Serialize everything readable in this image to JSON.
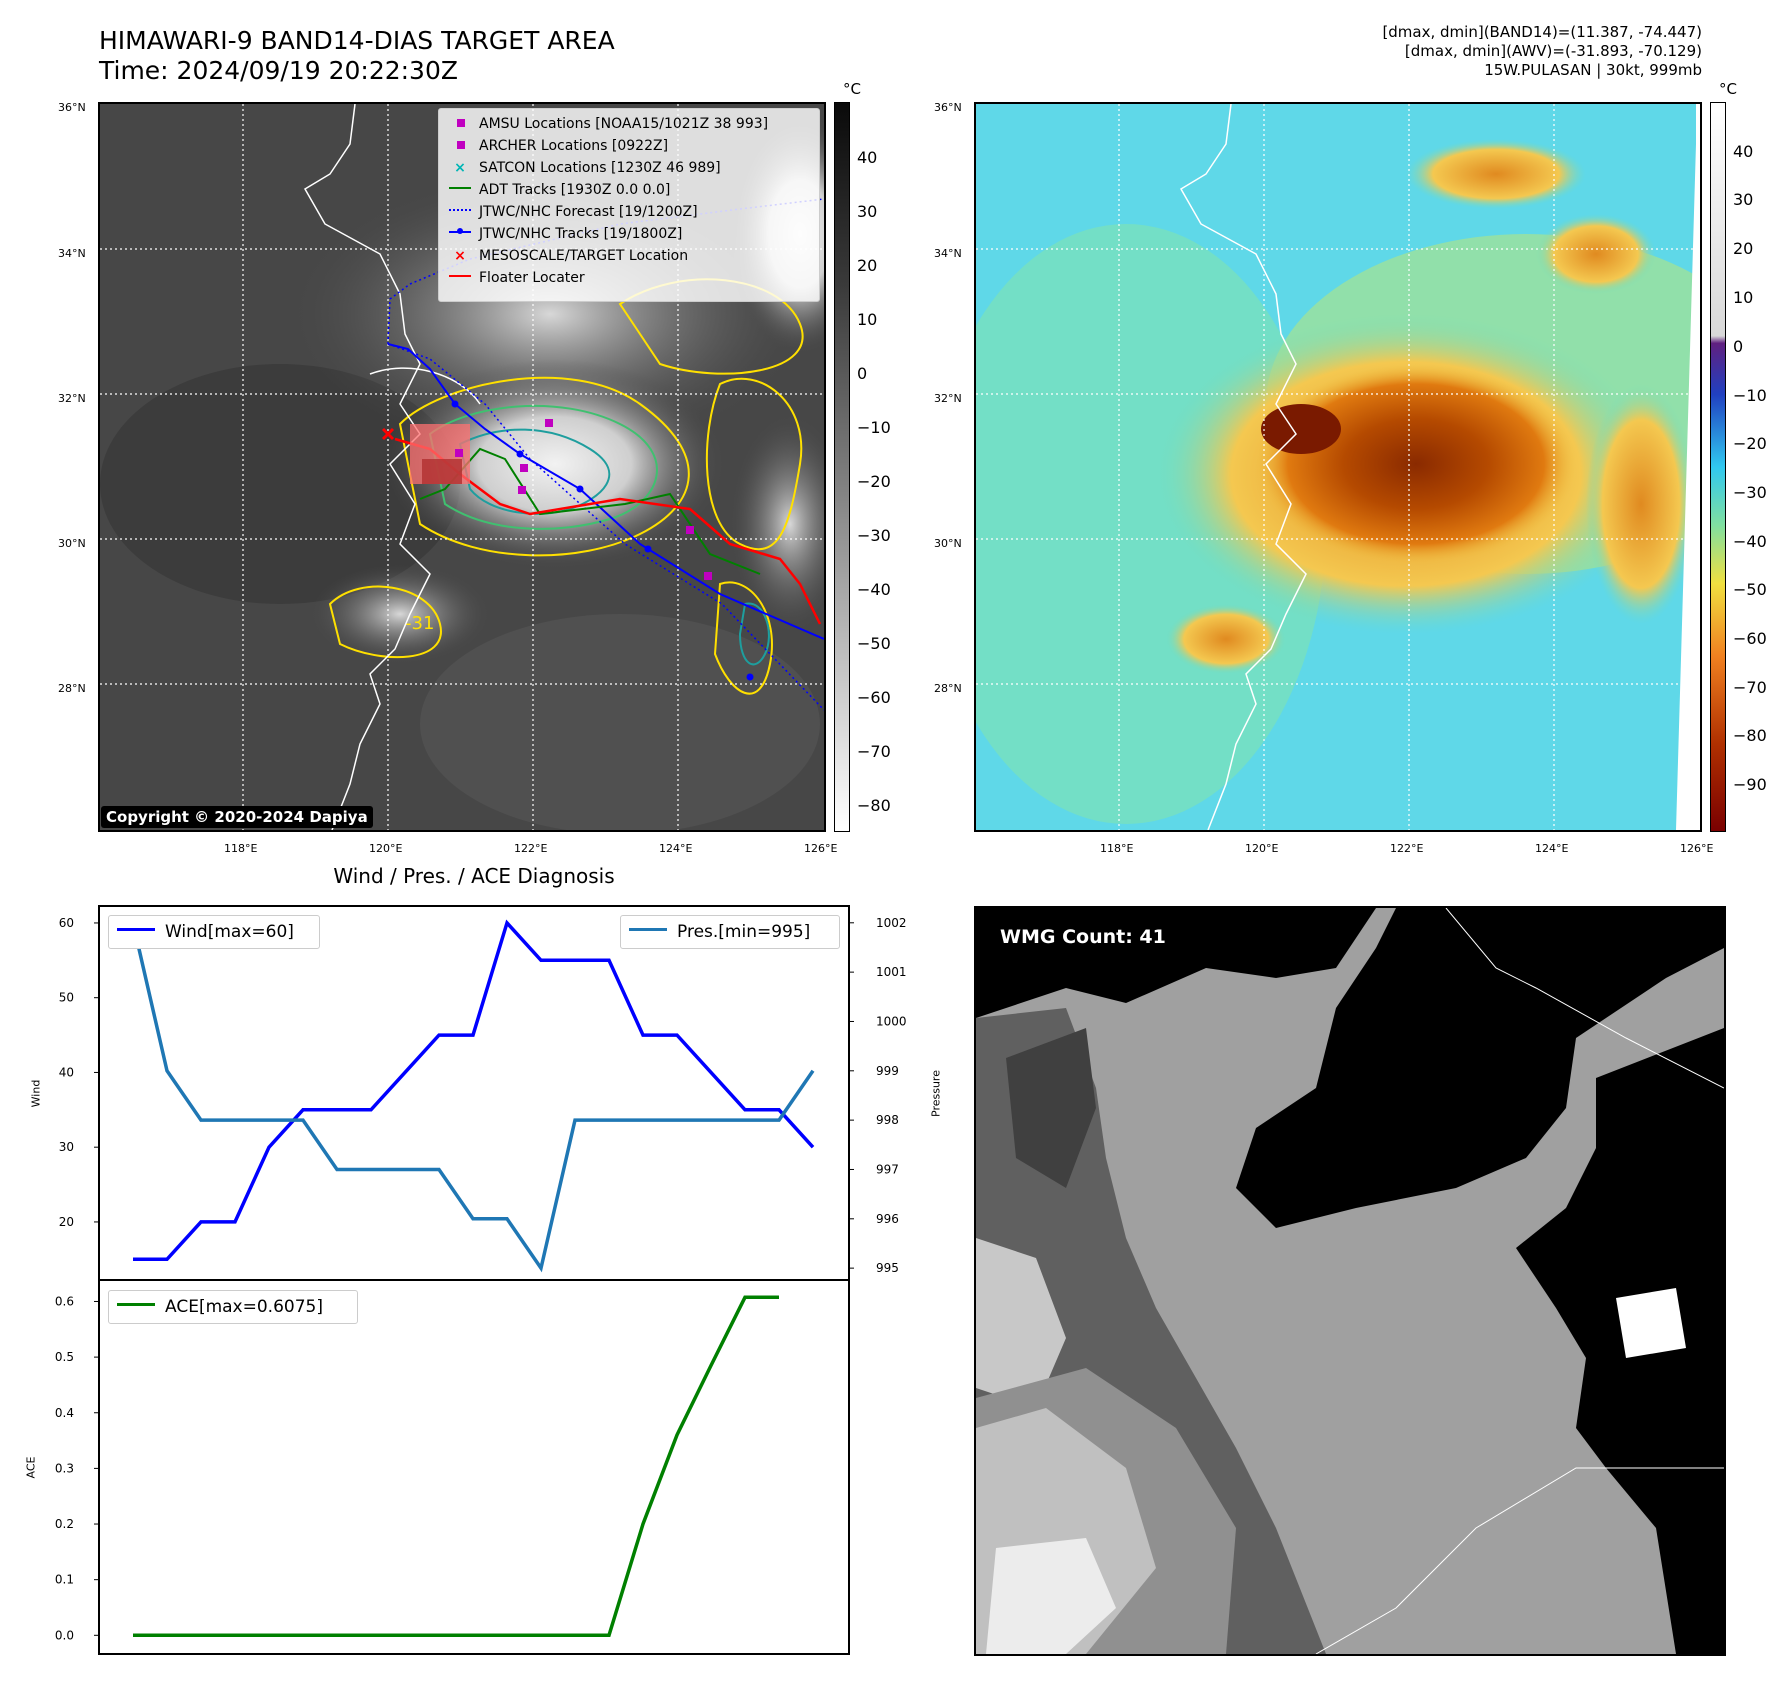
{
  "header": {
    "title_line1": "HIMAWARI-9 BAND14-DIAS TARGET AREA",
    "title_line2": "Time: 2024/09/19 20:22:30Z",
    "info_line1": "[dmax, dmin](BAND14)=(11.387, -74.447)",
    "info_line2": "[dmax, dmin](AWV)=(-31.893, -70.129)",
    "info_line3": "15W.PULASAN | 30kt, 999mb"
  },
  "map": {
    "lat_ticks": [
      "36°N",
      "34°N",
      "32°N",
      "30°N",
      "28°N"
    ],
    "lon_ticks": [
      "118°E",
      "120°E",
      "122°E",
      "124°E",
      "126°E"
    ],
    "contour_label": "-31"
  },
  "left_colorbar": {
    "unit": "°C",
    "ticks": [
      "40",
      "30",
      "20",
      "10",
      "0",
      "−10",
      "−20",
      "−30",
      "−40",
      "−50",
      "−60",
      "−70",
      "−80"
    ]
  },
  "right_colorbar": {
    "unit": "°C",
    "ticks": [
      "40",
      "30",
      "20",
      "10",
      "0",
      "−10",
      "−20",
      "−30",
      "−40",
      "−50",
      "−60",
      "−70",
      "−80",
      "−90"
    ]
  },
  "legend": {
    "items": [
      {
        "label": "AMSU Locations [NOAA15/1021Z 38 993]",
        "marker": "square",
        "color": "#c000c0"
      },
      {
        "label": "ARCHER Locations [0922Z]",
        "marker": "square",
        "color": "#c000c0"
      },
      {
        "label": "SATCON Locations [1230Z 46 989]",
        "marker": "x",
        "color": "#00b5b5"
      },
      {
        "label": "ADT Tracks [1930Z 0.0 0.0]",
        "marker": "line",
        "color": "#008000"
      },
      {
        "label": "JTWC/NHC Forecast [19/1200Z]",
        "marker": "dotted",
        "color": "#0000ff"
      },
      {
        "label": "JTWC/NHC Tracks [19/1800Z]",
        "marker": "line-dot",
        "color": "#0000ff"
      },
      {
        "label": "MESOSCALE/TARGET Location",
        "marker": "x",
        "color": "#ff0000"
      },
      {
        "label": "Floater Locater",
        "marker": "line",
        "color": "#ff0000"
      }
    ]
  },
  "copyright": "Copyright © 2020-2024 Dapiya",
  "wmg_label": "WMG Count: 41",
  "diagnosis": {
    "title": "Wind / Pres. / ACE Diagnosis",
    "wind_legend": "Wind[max=60]",
    "pres_legend": "Pres.[min=995]",
    "ace_legend": "ACE[max=0.6075]",
    "wind_axis_label": "Wind",
    "pres_axis_label": "Pressure",
    "ace_axis_label": "ACE",
    "wind_ticks": [
      "60",
      "50",
      "40",
      "30",
      "20"
    ],
    "pres_ticks": [
      "1002",
      "1001",
      "1000",
      "999",
      "998",
      "997",
      "996",
      "995"
    ],
    "ace_ticks": [
      "0.6",
      "0.5",
      "0.4",
      "0.3",
      "0.2",
      "0.1",
      "0.0"
    ]
  },
  "colors": {
    "wind": "#0000ff",
    "pressure": "#1f77b4",
    "ace": "#008000"
  },
  "chart_data": [
    {
      "type": "line",
      "series": [
        {
          "name": "Wind[max=60]",
          "values": [
            15,
            15,
            20,
            20,
            30,
            35,
            35,
            35,
            40,
            45,
            45,
            60,
            55,
            55,
            55,
            45,
            45,
            40,
            35,
            35,
            30
          ]
        }
      ],
      "ylim": [
        12.5,
        62
      ]
    },
    {
      "type": "line",
      "series": [
        {
          "name": "Pres.[min=995]",
          "values": [
            1002,
            999,
            998,
            998,
            998,
            998,
            997,
            997,
            997,
            997,
            996,
            996,
            995,
            998,
            998,
            998,
            998,
            998,
            998,
            998,
            999
          ]
        }
      ],
      "ylim": [
        994.8,
        1002.3
      ]
    },
    {
      "type": "line",
      "series": [
        {
          "name": "ACE[max=0.6075]",
          "values": [
            0,
            0,
            0,
            0,
            0,
            0,
            0,
            0,
            0,
            0,
            0,
            0,
            0,
            0,
            0,
            0.2,
            0.36,
            0.485,
            0.6075,
            0.6075
          ]
        }
      ],
      "ylim": [
        -0.03,
        0.635
      ]
    }
  ]
}
